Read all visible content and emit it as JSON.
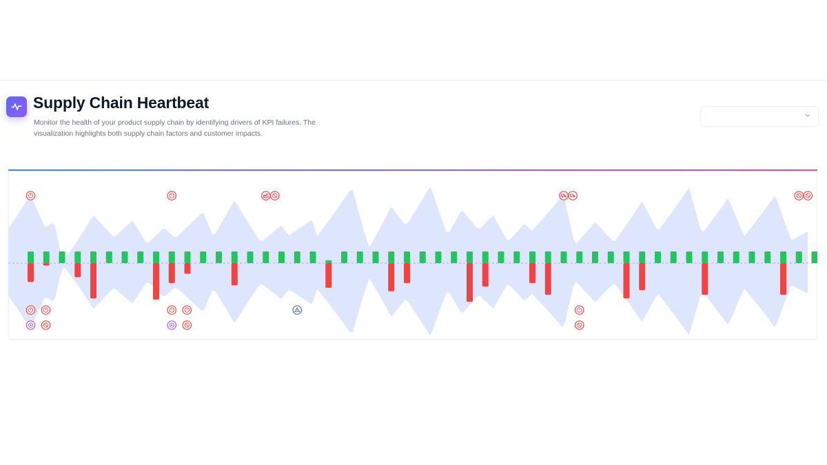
{
  "header": {
    "title": "Supply Chain Heartbeat",
    "description": "Monitor the health of your product supply chain by identifying drivers of KPI failures. The visualization highlights both supply chain factors and customer impacts.",
    "icon": "heartbeat-icon"
  },
  "filter": {
    "selected_value": "",
    "icon": "chevron-down-icon"
  },
  "colors": {
    "accent_start": "#3b82f6",
    "accent_mid": "#8b5cf6",
    "accent_end": "#ec4899",
    "success": "#22c55e",
    "failure": "#ef4444",
    "wave": "#dde6fc",
    "baseline": "#6366f1",
    "customer_icon": "#a855f7",
    "warning_icon": "#5b6b95"
  },
  "chart_data": {
    "type": "bar",
    "categories": [
      "1",
      "2",
      "3",
      "4",
      "5",
      "6",
      "7",
      "8",
      "9",
      "10",
      "11",
      "12",
      "13",
      "14",
      "15",
      "16",
      "17",
      "18",
      "19",
      "20",
      "21",
      "22",
      "23",
      "24",
      "25",
      "26",
      "27",
      "28",
      "29",
      "30",
      "31",
      "32",
      "33",
      "34",
      "35",
      "36",
      "37",
      "38",
      "39",
      "40",
      "41",
      "42",
      "43",
      "44",
      "45",
      "46",
      "47",
      "48",
      "49",
      "50",
      "51",
      "52"
    ],
    "series": [
      {
        "values": [
          1,
          1,
          1,
          1,
          1,
          1,
          1,
          1,
          1,
          1,
          1,
          1,
          1,
          1,
          1,
          1,
          1,
          1,
          1,
          0.25,
          1,
          1,
          1,
          1,
          1,
          1,
          1,
          1,
          1,
          1,
          1,
          1,
          1,
          1,
          1,
          1,
          1,
          1,
          1,
          1,
          1,
          1,
          1,
          1,
          1,
          1,
          1,
          1,
          1,
          1,
          1,
          1
        ]
      },
      {
        "values": [
          -1.6,
          -0.2,
          0,
          -1.2,
          -3.0,
          0,
          0,
          0,
          -3.1,
          -1.7,
          -0.9,
          0,
          0,
          -1.9,
          0,
          0,
          0,
          0,
          0,
          -2.1,
          0,
          0,
          0,
          -2.4,
          -1.7,
          0,
          0,
          0,
          -3.3,
          -2.0,
          0,
          0,
          -1.7,
          -2.7,
          0,
          0,
          0,
          0,
          -3.0,
          -2.3,
          0,
          0,
          0,
          -2.7,
          0,
          0,
          0,
          0,
          -2.7,
          0,
          0,
          -2.7
        ]
      }
    ],
    "events_top": [
      {
        "index": 0,
        "icons": [
          "clock-icon"
        ]
      },
      {
        "index": 9,
        "icons": [
          "clock-icon"
        ]
      },
      {
        "index": 15,
        "icons": [
          "factory-icon",
          "blocked-icon"
        ]
      },
      {
        "index": 34,
        "icons": [
          "truck-icon",
          "truck-icon"
        ]
      },
      {
        "index": 49,
        "icons": [
          "blocked-icon",
          "blocked-icon"
        ]
      }
    ],
    "events_bottom": [
      {
        "index": 0,
        "row": 0,
        "icons": [
          "clock-icon",
          "clock-icon"
        ]
      },
      {
        "index": 0,
        "row": 1,
        "icons": [
          "customer-icon",
          "blocked-icon"
        ]
      },
      {
        "index": 9,
        "row": 0,
        "icons": [
          "clock-icon",
          "clock-icon"
        ]
      },
      {
        "index": 9,
        "row": 1,
        "icons": [
          "customer-icon",
          "blocked-icon"
        ]
      },
      {
        "index": 17,
        "row": 0,
        "icons": [
          "warning-icon"
        ]
      },
      {
        "index": 35,
        "row": 0,
        "icons": [
          "clock-icon"
        ]
      },
      {
        "index": 35,
        "row": 1,
        "icons": [
          "blocked-icon"
        ]
      }
    ],
    "xlabel": "",
    "ylabel": "",
    "grid": false,
    "legend": "none"
  }
}
